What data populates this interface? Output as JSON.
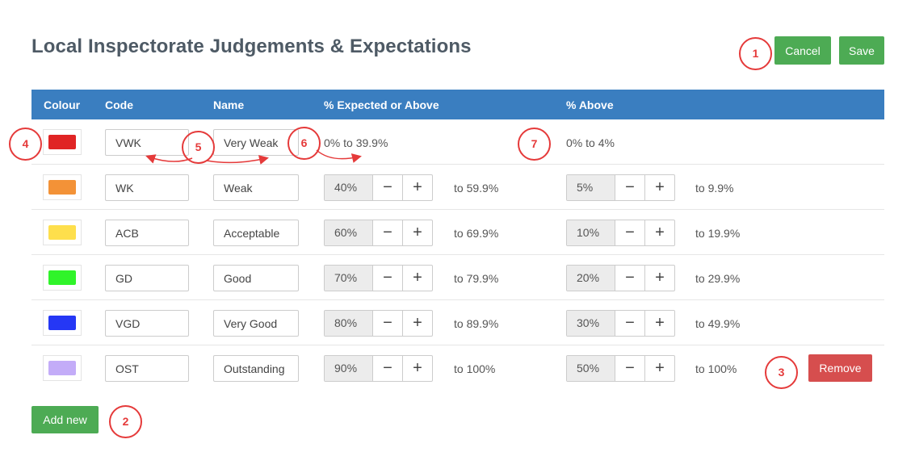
{
  "page": {
    "title": "Local Inspectorate Judgements & Expectations"
  },
  "toolbar": {
    "cancel_label": "Cancel",
    "save_label": "Save"
  },
  "table": {
    "headers": {
      "colour": "Colour",
      "code": "Code",
      "name": "Name",
      "expected": "% Expected or Above",
      "above": "% Above"
    },
    "first_row": {
      "color": "#e02424",
      "code": "VWK",
      "name": "Very Weak",
      "expected_range": "0% to 39.9%",
      "above_range": "0% to 4%"
    },
    "rows": [
      {
        "color": "#f39237",
        "code": "WK",
        "name": "Weak",
        "expected": "40%",
        "expected_to": "to 59.9%",
        "above": "5%",
        "above_to": "to 9.9%"
      },
      {
        "color": "#fedf4c",
        "code": "ACB",
        "name": "Acceptable",
        "expected": "60%",
        "expected_to": "to 69.9%",
        "above": "10%",
        "above_to": "to 19.9%"
      },
      {
        "color": "#30f42a",
        "code": "GD",
        "name": "Good",
        "expected": "70%",
        "expected_to": "to 79.9%",
        "above": "20%",
        "above_to": "to 29.9%"
      },
      {
        "color": "#2537f5",
        "code": "VGD",
        "name": "Very Good",
        "expected": "80%",
        "expected_to": "to 89.9%",
        "above": "30%",
        "above_to": "to 49.9%"
      },
      {
        "color": "#c3acf8",
        "code": "OST",
        "name": "Outstanding",
        "expected": "90%",
        "expected_to": "to 100%",
        "above": "50%",
        "above_to": "to 100%"
      }
    ],
    "stepper": {
      "minus": "−",
      "plus": "+"
    },
    "remove_label": "Remove",
    "add_label": "Add new"
  },
  "callouts": [
    "1",
    "2",
    "3",
    "4",
    "5",
    "6",
    "7"
  ],
  "colors": {
    "header": "#3a7ec0",
    "primary": "#4dab54",
    "danger": "#d64e4e",
    "callout": "#e53a3a"
  }
}
